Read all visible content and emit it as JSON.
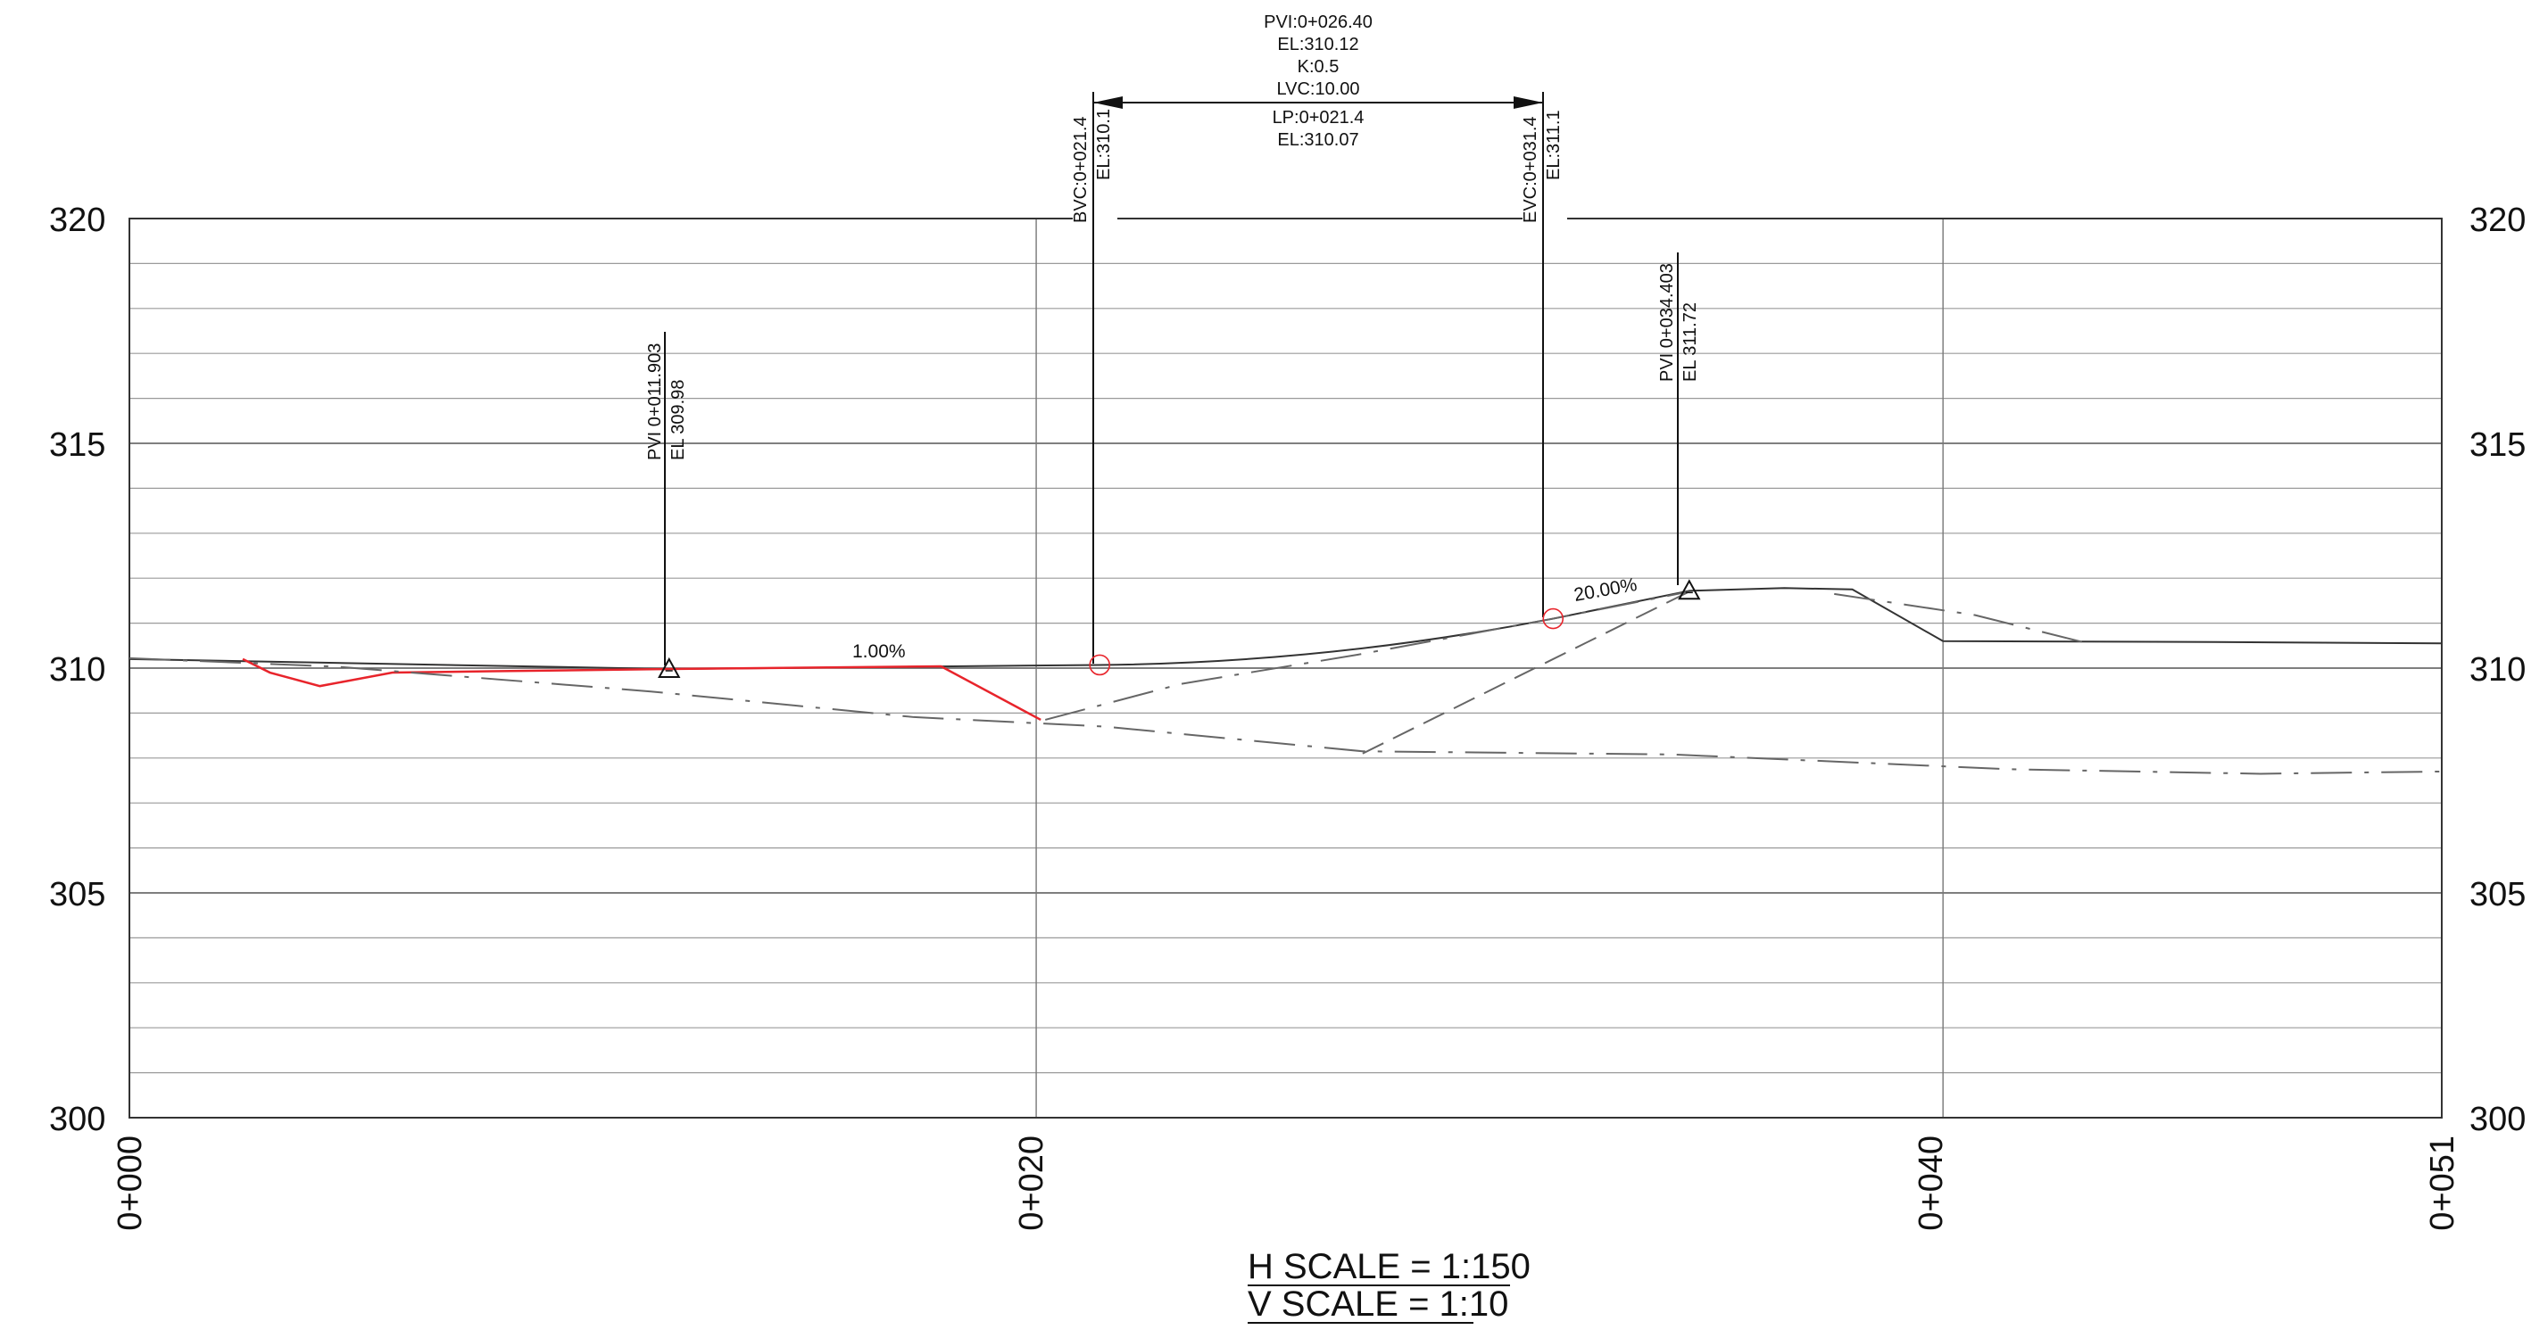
{
  "drawing": {
    "elevation_labels": [
      "320",
      "315",
      "310",
      "305",
      "300"
    ],
    "station_labels": [
      "0+000",
      "0+020",
      "0+040",
      "0+051"
    ],
    "scale": {
      "horizontal": "H SCALE = 1:150",
      "vertical": "V SCALE = 1:10"
    },
    "vertical_curve": {
      "pvi": "PVI:0+026.40",
      "el": "EL:310.12",
      "k": "K:0.5",
      "lvc": "LVC:10.00",
      "lp": "LP:0+021.4",
      "lp_el": "EL:310.07",
      "bvc_station": "BVC:0+021.4",
      "bvc_el": "EL:310.1",
      "evc_station": "EVC:0+031.4",
      "evc_el": "EL:311.1"
    },
    "pvi_left": {
      "station": "PVI 0+011.903",
      "el": "EL 309.98"
    },
    "pvi_right": {
      "station": "PVI 0+034.403",
      "el": "EL 311.72"
    },
    "grades": {
      "g1": "1.00%",
      "g2": "20.00%"
    },
    "colors": {
      "proposed_profile": "#e8242b",
      "grid": "#555555",
      "lines": "#333333",
      "existing_ground": "#666666",
      "curve_markers": "#e8242b"
    }
  },
  "chart_data": {
    "type": "line",
    "xlim": [
      0,
      51
    ],
    "ylim": [
      300,
      320
    ],
    "x_ticks": [
      0,
      20,
      40,
      51
    ],
    "y_ticks": [
      300,
      305,
      310,
      315,
      320
    ],
    "series": [
      {
        "style": "finished-grade",
        "x": [
          0,
          11.903,
          21.4,
          26.4,
          31.4,
          34.403,
          36.5,
          38,
          40,
          46,
          51
        ],
        "y": [
          310.2,
          309.98,
          310.07,
          310.12,
          311.1,
          311.72,
          311.78,
          311.75,
          310.6,
          310.58,
          310.55
        ]
      },
      {
        "style": "proposed-red",
        "x": [
          2.5,
          3.1,
          4.2,
          5.8,
          8,
          11.903,
          17.9,
          20.1
        ],
        "y": [
          310.2,
          309.9,
          309.6,
          309.9,
          309.93,
          309.98,
          310.04,
          308.85
        ]
      },
      {
        "style": "existing-ground-a",
        "x": [
          0,
          4.6,
          11.5,
          17.3,
          21.5,
          27.2,
          34,
          41.5,
          47,
          51
        ],
        "y": [
          310.22,
          310.03,
          309.48,
          308.91,
          308.7,
          308.15,
          308.08,
          307.75,
          307.65,
          307.7
        ]
      },
      {
        "style": "existing-ground-b",
        "x": [
          20.2,
          23.2,
          27.1,
          31.4,
          34.4
        ],
        "y": [
          308.85,
          309.65,
          310.3,
          311.1,
          311.7
        ]
      },
      {
        "style": "existing-ground-c",
        "x": [
          27.2,
          34.4
        ],
        "y": [
          308.1,
          311.7
        ]
      },
      {
        "style": "existing-ground-d",
        "x": [
          37.6,
          40.7,
          43.2
        ],
        "y": [
          311.65,
          311.18,
          310.55
        ]
      }
    ],
    "points": {
      "pvi_markers": [
        {
          "x": 11.903,
          "y": 309.98
        },
        {
          "x": 34.403,
          "y": 311.72
        }
      ],
      "curve_markers": [
        {
          "x": 21.4,
          "y": 310.07
        },
        {
          "x": 31.4,
          "y": 311.1
        }
      ]
    }
  }
}
